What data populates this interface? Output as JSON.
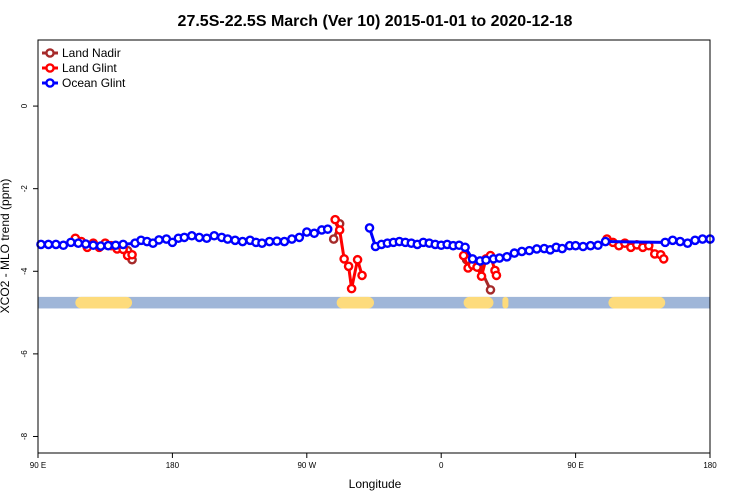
{
  "chart_data": {
    "type": "line",
    "title": "27.5S-22.5S March (Ver 10)   2015-01-01 to 2020-12-18",
    "xlabel": "Longitude",
    "ylabel": "XCO2 - MLO trend (ppm)",
    "x_ticks": [
      {
        "value": 90,
        "label": "90 E"
      },
      {
        "value": 180,
        "label": "180"
      },
      {
        "value": 270,
        "label": "90 W"
      },
      {
        "value": 360,
        "label": "0"
      },
      {
        "value": 450,
        "label": "90 E"
      },
      {
        "value": 540,
        "label": "180"
      }
    ],
    "y_ticks": [
      {
        "value": 0,
        "label": "0"
      },
      {
        "value": -2,
        "label": "-2"
      },
      {
        "value": -4,
        "label": "-4"
      },
      {
        "value": -6,
        "label": "-6"
      },
      {
        "value": -8,
        "label": "-8"
      }
    ],
    "xlim": [
      90,
      540
    ],
    "ylim": [
      -8.4,
      1.6
    ],
    "grid": false,
    "legend_position": "top-left",
    "colors": {
      "land_nadir": "#a52a2a",
      "land_glint": "#ff0000",
      "ocean_glint": "#0000ff",
      "ocean_band": "#9fb6d8",
      "land_band": "#fddb7c"
    },
    "surface_band": {
      "y_range": [
        -4.9,
        -4.62
      ],
      "land_segments": [
        [
          115,
          153
        ],
        [
          290,
          315
        ],
        [
          375,
          395
        ],
        [
          401,
          405
        ],
        [
          472,
          510
        ]
      ]
    },
    "series": [
      {
        "name": "Land Nadir",
        "color": "#a52a2a",
        "segments": [
          [
            [
              115,
              -3.28
            ],
            [
              150,
              -3.5
            ],
            [
              153,
              -3.72
            ]
          ],
          [
            [
              288,
              -3.22
            ],
            [
              292,
              -2.85
            ]
          ],
          [
            [
              377,
              -3.72
            ],
            [
              383,
              -3.82
            ],
            [
              385,
              -3.85
            ],
            [
              393,
              -4.45
            ]
          ]
        ]
      },
      {
        "name": "Land Glint",
        "color": "#ff0000",
        "segments": [
          [
            [
              115,
              -3.2
            ],
            [
              119,
              -3.28
            ],
            [
              123,
              -3.42
            ],
            [
              127,
              -3.32
            ],
            [
              131,
              -3.42
            ],
            [
              135,
              -3.32
            ],
            [
              139,
              -3.38
            ],
            [
              143,
              -3.46
            ],
            [
              147,
              -3.47
            ],
            [
              150,
              -3.62
            ],
            [
              153,
              -3.6
            ]
          ],
          [
            [
              289,
              -2.75
            ],
            [
              292,
              -3.0
            ],
            [
              295,
              -3.7
            ],
            [
              298,
              -3.88
            ],
            [
              300,
              -4.42
            ],
            [
              304,
              -3.72
            ],
            [
              307,
              -4.1
            ]
          ],
          [
            [
              375,
              -3.62
            ],
            [
              378,
              -3.92
            ],
            [
              381,
              -3.85
            ],
            [
              384,
              -3.9
            ],
            [
              387,
              -4.12
            ],
            [
              390,
              -3.7
            ],
            [
              393,
              -3.62
            ],
            [
              396,
              -3.98
            ],
            [
              397,
              -4.1
            ]
          ],
          [
            [
              471,
              -3.22
            ],
            [
              475,
              -3.3
            ],
            [
              479,
              -3.38
            ],
            [
              483,
              -3.32
            ],
            [
              487,
              -3.42
            ],
            [
              491,
              -3.36
            ],
            [
              495,
              -3.42
            ],
            [
              499,
              -3.38
            ],
            [
              503,
              -3.58
            ],
            [
              507,
              -3.6
            ],
            [
              509,
              -3.7
            ]
          ]
        ]
      },
      {
        "name": "Ocean Glint",
        "color": "#0000ff",
        "segments": [
          [
            [
              92,
              -3.35
            ],
            [
              97,
              -3.35
            ],
            [
              102,
              -3.35
            ],
            [
              107,
              -3.37
            ],
            [
              112,
              -3.3
            ],
            [
              117,
              -3.32
            ],
            [
              122,
              -3.34
            ],
            [
              127,
              -3.37
            ],
            [
              132,
              -3.39
            ],
            [
              137,
              -3.38
            ],
            [
              142,
              -3.37
            ],
            [
              147,
              -3.35
            ],
            [
              155,
              -3.32
            ],
            [
              159,
              -3.25
            ],
            [
              163,
              -3.28
            ],
            [
              167,
              -3.32
            ],
            [
              171,
              -3.24
            ],
            [
              176,
              -3.22
            ],
            [
              180,
              -3.3
            ],
            [
              184,
              -3.2
            ],
            [
              188,
              -3.18
            ],
            [
              193,
              -3.14
            ],
            [
              198,
              -3.18
            ],
            [
              203,
              -3.2
            ],
            [
              208,
              -3.14
            ],
            [
              213,
              -3.18
            ],
            [
              217,
              -3.22
            ],
            [
              222,
              -3.25
            ],
            [
              227,
              -3.28
            ],
            [
              232,
              -3.25
            ],
            [
              236,
              -3.3
            ],
            [
              240,
              -3.32
            ],
            [
              245,
              -3.28
            ],
            [
              250,
              -3.27
            ],
            [
              255,
              -3.28
            ],
            [
              260,
              -3.22
            ],
            [
              265,
              -3.18
            ],
            [
              270,
              -3.05
            ],
            [
              275,
              -3.08
            ],
            [
              280,
              -3.0
            ],
            [
              284,
              -2.98
            ]
          ],
          [
            [
              312,
              -2.95
            ],
            [
              316,
              -3.4
            ],
            [
              320,
              -3.35
            ],
            [
              324,
              -3.32
            ],
            [
              328,
              -3.3
            ],
            [
              332,
              -3.28
            ],
            [
              336,
              -3.3
            ],
            [
              340,
              -3.32
            ],
            [
              344,
              -3.35
            ],
            [
              348,
              -3.3
            ],
            [
              352,
              -3.32
            ],
            [
              356,
              -3.35
            ],
            [
              360,
              -3.37
            ],
            [
              364,
              -3.35
            ],
            [
              368,
              -3.38
            ],
            [
              372,
              -3.37
            ],
            [
              376,
              -3.42
            ],
            [
              381,
              -3.7
            ],
            [
              386,
              -3.75
            ],
            [
              390,
              -3.73
            ],
            [
              395,
              -3.7
            ],
            [
              399,
              -3.68
            ],
            [
              404,
              -3.65
            ],
            [
              409,
              -3.56
            ],
            [
              414,
              -3.52
            ],
            [
              419,
              -3.5
            ],
            [
              424,
              -3.46
            ],
            [
              429,
              -3.45
            ],
            [
              433,
              -3.48
            ],
            [
              437,
              -3.42
            ],
            [
              441,
              -3.45
            ],
            [
              446,
              -3.38
            ],
            [
              450,
              -3.38
            ],
            [
              455,
              -3.4
            ],
            [
              460,
              -3.38
            ],
            [
              465,
              -3.37
            ],
            [
              470,
              -3.28
            ],
            [
              510,
              -3.3
            ],
            [
              515,
              -3.25
            ],
            [
              520,
              -3.28
            ],
            [
              525,
              -3.32
            ],
            [
              530,
              -3.25
            ],
            [
              535,
              -3.22
            ],
            [
              540,
              -3.22
            ]
          ]
        ]
      }
    ]
  }
}
